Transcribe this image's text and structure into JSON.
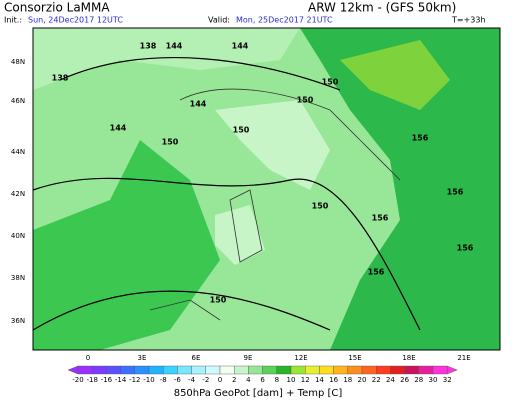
{
  "header": {
    "title": "Consorzio LaMMA",
    "model": "ARW 12km - (GFS 50km)",
    "init_label": "Init.:",
    "init": "Sun, 24Dec2017 12UTC",
    "valid_label": "Valid:",
    "valid": "Mon, 25Dec2017 21UTC",
    "lead": "T=+33h"
  },
  "map": {
    "lat_labels": [
      "48N",
      "46N",
      "44N",
      "42N",
      "40N",
      "38N",
      "36N"
    ],
    "lon_labels": [
      "0",
      "3E",
      "6E",
      "9E",
      "12E",
      "15E",
      "18E",
      "21E"
    ],
    "contour_labels": [
      "138",
      "138",
      "144",
      "144",
      "144",
      "150",
      "150",
      "150",
      "150",
      "156",
      "156",
      "156",
      "156",
      "150",
      "144",
      "150",
      "156"
    ]
  },
  "legend": {
    "ticks": [
      -20,
      -18,
      -16,
      -14,
      -12,
      -10,
      -8,
      -6,
      -4,
      -2,
      0,
      2,
      4,
      6,
      8,
      10,
      12,
      14,
      16,
      18,
      20,
      22,
      24,
      26,
      28,
      30,
      32
    ],
    "colors": [
      "#9b30ff",
      "#7b3cff",
      "#5a50ff",
      "#3c6eff",
      "#2890ff",
      "#1eb4ff",
      "#3cd2ff",
      "#78e6ff",
      "#aaf0ff",
      "#d2f8ff",
      "#f0fff0",
      "#c8f5c8",
      "#96e696",
      "#5ad25a",
      "#28b428",
      "#9be632",
      "#e6f032",
      "#ffdc1e",
      "#ffb41e",
      "#ff8c1e",
      "#ff641e",
      "#ff3c1e",
      "#e61e1e",
      "#c8145a",
      "#e61ea0",
      "#ff32dc"
    ],
    "caption": "850hPa GeoPot [dam] + Temp [C]"
  }
}
